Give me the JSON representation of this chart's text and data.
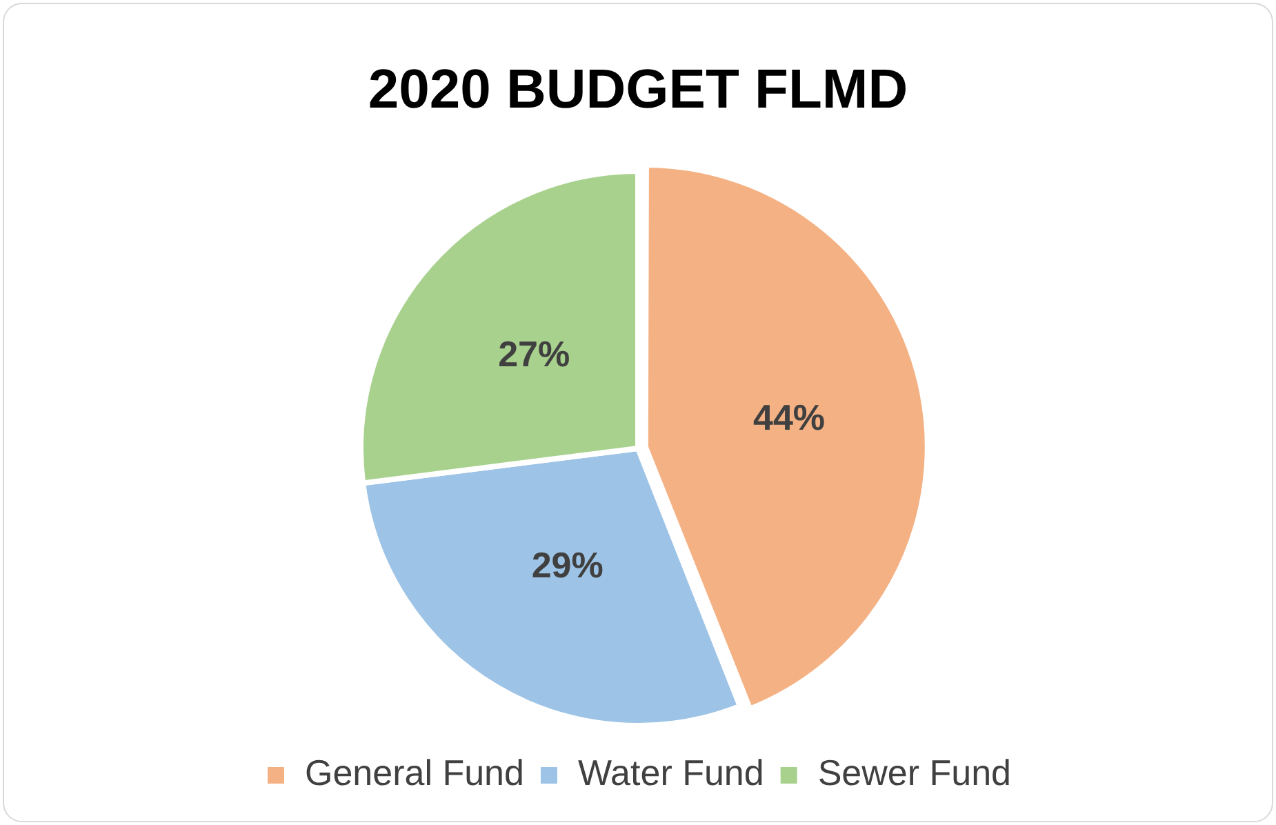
{
  "chart_data": {
    "type": "pie",
    "title": "2020 BUDGET FLMD",
    "categories": [
      "General Fund",
      "Water Fund",
      "Sewer Fund"
    ],
    "values": [
      44,
      29,
      27
    ],
    "colors": [
      "#f4b183",
      "#9dc3e6",
      "#a9d18e"
    ],
    "value_labels": [
      "44%",
      "29%",
      "27%"
    ],
    "legend": "bottom"
  }
}
